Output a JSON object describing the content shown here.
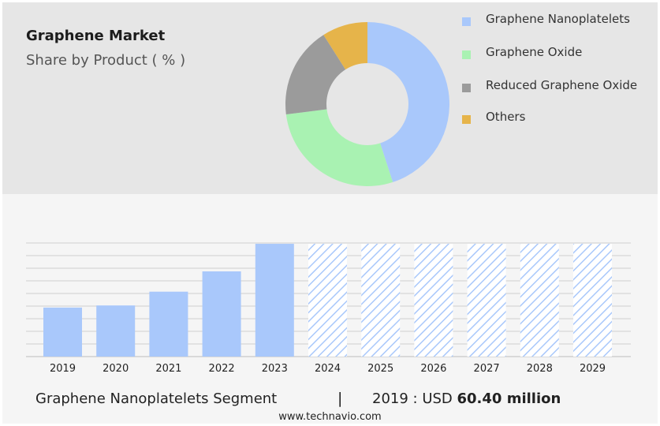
{
  "header": {
    "title": "Graphene Market",
    "subtitle": "Share by Product ( % )"
  },
  "legend": [
    {
      "label": "Graphene Nanoplatelets",
      "color": "#a9c8fb"
    },
    {
      "label": "Graphene Oxide",
      "color": "#a9f2b2"
    },
    {
      "label": "Reduced Graphene Oxide",
      "color": "#9b9b9b"
    },
    {
      "label": "Others",
      "color": "#e6b44a"
    }
  ],
  "chart_data": [
    {
      "type": "pie",
      "title": "Share by Product ( % )",
      "categories": [
        "Graphene Nanoplatelets",
        "Graphene Oxide",
        "Reduced Graphene Oxide",
        "Others"
      ],
      "values": [
        45,
        28,
        18,
        9
      ],
      "colors": [
        "#a9c8fb",
        "#a9f2b2",
        "#9b9b9b",
        "#e6b44a"
      ]
    },
    {
      "type": "bar",
      "categories": [
        "2019",
        "2020",
        "2021",
        "2022",
        "2023",
        "2024",
        "2025",
        "2026",
        "2027",
        "2028",
        "2029"
      ],
      "values": [
        60.4,
        63,
        80,
        105,
        139,
        139,
        139,
        139,
        139,
        139,
        139
      ],
      "forecast_from": "2024",
      "bar_color": "#a9c8fb",
      "ylim": [
        0,
        140
      ],
      "grid": true
    }
  ],
  "footer": {
    "segment": "Graphene Nanoplatelets Segment",
    "divider": "|",
    "value_prefix": "2019 : USD ",
    "value_bold": "60.40 million"
  },
  "watermark": "www.technavio.com"
}
